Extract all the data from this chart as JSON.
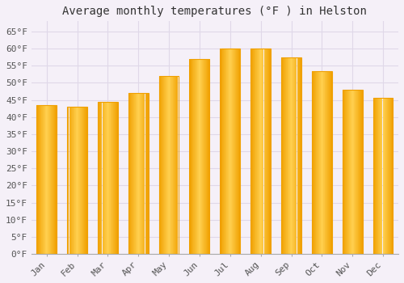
{
  "title": "Average monthly temperatures (°F ) in Helston",
  "months": [
    "Jan",
    "Feb",
    "Mar",
    "Apr",
    "May",
    "Jun",
    "Jul",
    "Aug",
    "Sep",
    "Oct",
    "Nov",
    "Dec"
  ],
  "values": [
    43.5,
    43.0,
    44.5,
    47.0,
    52.0,
    57.0,
    60.0,
    60.0,
    57.5,
    53.5,
    48.0,
    45.5
  ],
  "bar_color_center": "#FFD050",
  "bar_color_edge": "#F0A000",
  "background_color": "#F5F0F8",
  "grid_color": "#E0D8E8",
  "ylim": [
    0,
    68
  ],
  "yticks": [
    0,
    5,
    10,
    15,
    20,
    25,
    30,
    35,
    40,
    45,
    50,
    55,
    60,
    65
  ],
  "ytick_labels": [
    "0°F",
    "5°F",
    "10°F",
    "15°F",
    "20°F",
    "25°F",
    "30°F",
    "35°F",
    "40°F",
    "45°F",
    "50°F",
    "55°F",
    "60°F",
    "65°F"
  ],
  "title_fontsize": 10,
  "tick_fontsize": 8,
  "font_family": "monospace"
}
